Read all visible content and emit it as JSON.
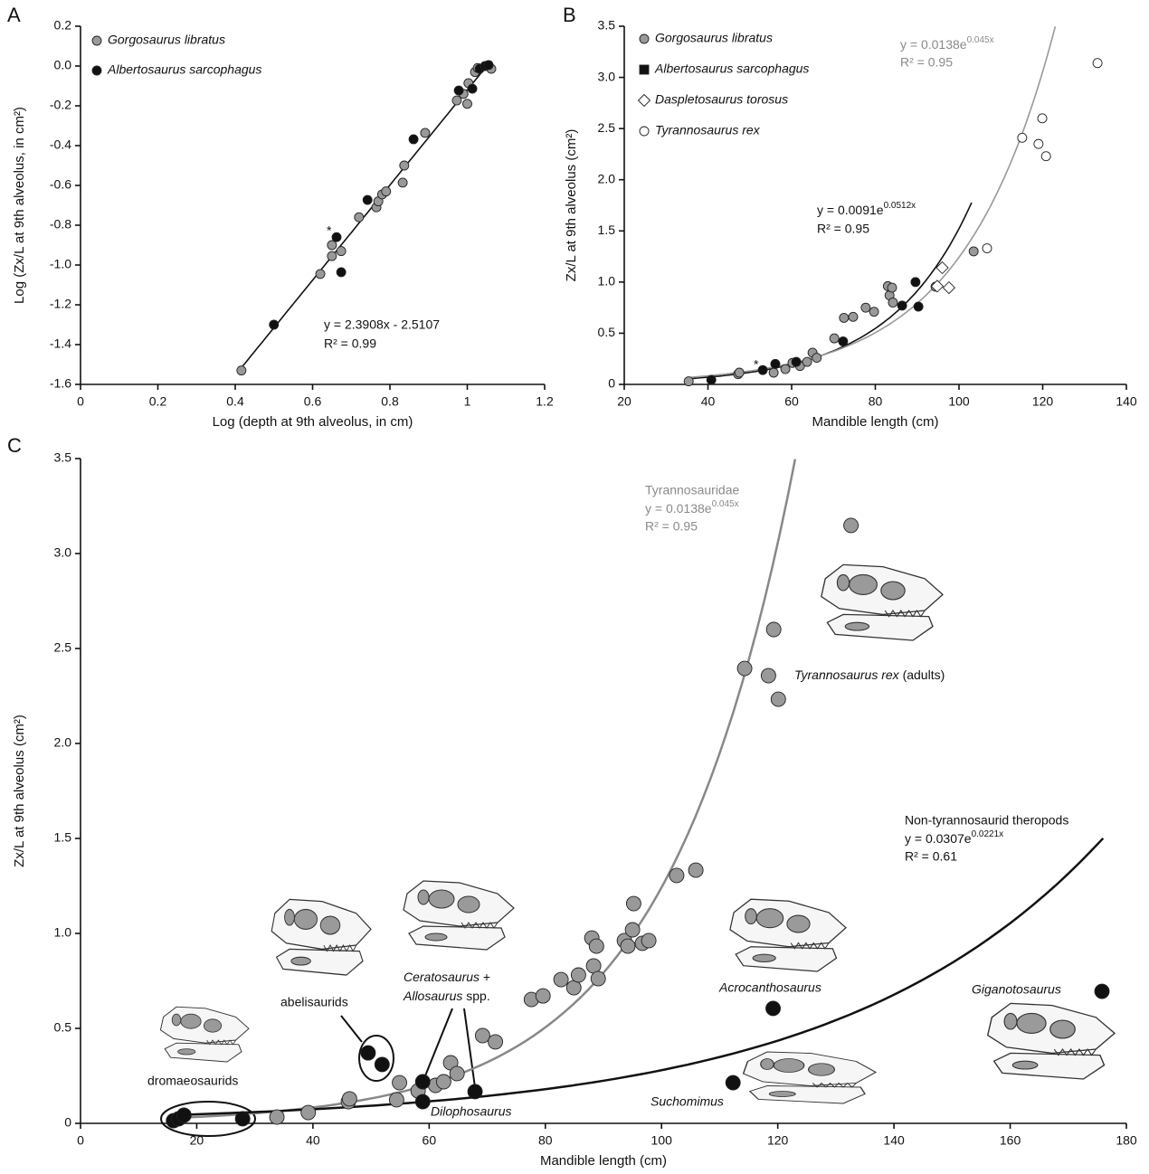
{
  "chart_data": [
    {
      "type": "scatter",
      "panel": "A",
      "xlabel": "Log (depth at 9th alveolus, in cm)",
      "ylabel": "Log (Zx/L at 9th alveolus, in cm²)",
      "xlim": [
        0,
        1.2
      ],
      "xticks": [
        0,
        0.2,
        0.4,
        0.6,
        0.8,
        1,
        1.2
      ],
      "ylim": [
        -1.6,
        0.2
      ],
      "yticks": [
        0.2,
        {
          "value": 0,
          "label": "0.0"
        },
        -0.2,
        -0.4,
        -0.6,
        -0.8,
        {
          "value": -1,
          "label": "-1.0"
        },
        -1.2,
        -1.4,
        -1.6
      ],
      "series": [
        {
          "name": "Gorgosaurus libratus",
          "color": "#999999",
          "marker": "circle",
          "x": [
            0.416,
            0.62,
            0.65,
            0.65,
            0.674,
            0.72,
            0.765,
            0.77,
            0.78,
            0.79,
            0.833,
            0.837,
            0.891,
            0.973,
            0.99,
            1.0,
            1.003,
            1.02,
            1.027,
            1.062
          ],
          "values": [
            -1.53,
            -1.045,
            -0.955,
            -0.9,
            -0.93,
            -0.76,
            -0.71,
            -0.68,
            -0.645,
            -0.63,
            -0.586,
            -0.5,
            -0.336,
            -0.173,
            -0.14,
            -0.19,
            -0.086,
            -0.03,
            -0.01,
            -0.014
          ]
        },
        {
          "name": "Albertosaurus sarcophagus",
          "color": "#111111",
          "marker": "circle",
          "x": [
            0.5,
            0.662,
            0.674,
            0.742,
            0.861,
            0.978,
            1.013,
            1.032,
            1.046,
            1.055
          ],
          "values": [
            -1.3,
            -0.86,
            -1.036,
            -0.673,
            -0.368,
            -0.123,
            -0.114,
            -0.014,
            0,
            0.005
          ]
        }
      ],
      "fits": [
        {
          "kind": "linear",
          "slope": 2.3908,
          "intercept": -2.5107,
          "x": [
            0.42,
            1.06
          ],
          "color": "#111111"
        }
      ],
      "equation": "y = 2.3908x - 2.5107",
      "r2": "R² = 0.99",
      "asterisk": "*"
    },
    {
      "type": "scatter",
      "panel": "B",
      "xlabel": "Mandible length (cm)",
      "ylabel": "Zx/L at 9th alveolus (cm²)",
      "xlim": [
        20,
        140
      ],
      "xticks": [
        20,
        40,
        60,
        80,
        100,
        120,
        140
      ],
      "ylim": [
        0,
        3.5
      ],
      "yticks": [
        0,
        0.5,
        {
          "value": 1,
          "label": "1.0"
        },
        1.5,
        {
          "value": 2,
          "label": "2.0"
        },
        2.5,
        {
          "value": 3,
          "label": "3.0"
        },
        3.5
      ],
      "series": [
        {
          "name": "Gorgosaurus libratus",
          "color": "#999999",
          "marker": "circle",
          "x": [
            35.4,
            47.2,
            47.5,
            55.7,
            58.5,
            60.2,
            62,
            63.7,
            65,
            66,
            70.2,
            72.5,
            74.7,
            77.7,
            79.7,
            83,
            83.4,
            84,
            84.2,
            94.4,
            103.5
          ],
          "values": [
            0.03,
            0.1,
            0.115,
            0.115,
            0.15,
            0.21,
            0.18,
            0.22,
            0.31,
            0.26,
            0.45,
            0.65,
            0.66,
            0.75,
            0.71,
            0.96,
            0.87,
            0.945,
            0.8,
            0.955,
            1.3
          ]
        },
        {
          "name": "Albertosaurus sarcophagus",
          "color": "#111111",
          "marker": "square",
          "x": [
            40.8,
            53.1,
            56.1,
            61.1,
            72.3,
            86.4,
            89.6,
            90.3
          ],
          "values": [
            0.044,
            0.14,
            0.2,
            0.22,
            0.42,
            0.77,
            1.0,
            0.76
          ]
        },
        {
          "name": "Daspletosaurus torosus",
          "color": "#ffffff",
          "marker": "diamond",
          "x": [
            96,
            94.8,
            97.6
          ],
          "values": [
            1.14,
            0.96,
            0.945
          ]
        },
        {
          "name": "Tyrannosaurus rex",
          "color": "#ffffff",
          "marker": "circle",
          "x": [
            106.7,
            115.1,
            119,
            119.9,
            120.8,
            133.1
          ],
          "values": [
            1.33,
            2.41,
            2.35,
            2.6,
            2.23,
            3.14
          ]
        }
      ],
      "fits": [
        {
          "kind": "exp",
          "a": 0.0091,
          "b": 0.0512,
          "x": [
            35,
            103
          ],
          "color": "#111111"
        },
        {
          "kind": "exp",
          "a": 0.0138,
          "b": 0.045,
          "x": [
            35,
            123
          ],
          "color": "#999999"
        }
      ],
      "equations": [
        {
          "base": "y = 0.0091e",
          "exp": "0.0512x",
          "r2": "R² = 0.95"
        },
        {
          "base": "y = 0.0138e",
          "exp": "0.045x",
          "r2": "R² = 0.95"
        }
      ],
      "asterisk": "*"
    },
    {
      "type": "scatter",
      "panel": "C",
      "xlabel": "Mandible length (cm)",
      "ylabel": "Zx/L at 9th alveolus (cm²)",
      "xlim": [
        0,
        180
      ],
      "xticks": [
        0,
        20,
        40,
        60,
        80,
        100,
        120,
        140,
        160,
        180
      ],
      "ylim": [
        0,
        3.5
      ],
      "yticks": [
        0,
        0.5,
        {
          "value": 1,
          "label": "1.0"
        },
        1.5,
        {
          "value": 2,
          "label": "2.0"
        },
        2.5,
        {
          "value": 3,
          "label": "3.0"
        },
        3.5
      ],
      "series": [
        {
          "color": "#999999",
          "marker": "circle",
          "x": [
            33.8,
            39.2,
            46.1,
            46.3,
            54.4,
            54.9,
            58.1,
            61.1,
            62.5,
            63.7,
            64.8,
            69.2,
            71.4,
            77.6,
            79.6,
            82.7,
            84.9,
            85.7,
            88,
            88.3,
            88.8,
            89.1,
            93.6,
            94.2,
            95,
            95.2,
            96.7,
            97.8,
            102.6,
            105.9,
            114.3,
            118.4,
            119.3,
            120.1,
            132.6
          ],
          "values": [
            0.033,
            0.057,
            0.114,
            0.129,
            0.124,
            0.214,
            0.171,
            0.2,
            0.219,
            0.319,
            0.262,
            0.462,
            0.429,
            0.652,
            0.671,
            0.757,
            0.714,
            0.781,
            0.976,
            0.829,
            0.933,
            0.762,
            0.962,
            0.933,
            1.019,
            1.157,
            0.948,
            0.962,
            1.305,
            1.333,
            2.395,
            2.357,
            2.6,
            2.233,
            3.148
          ]
        },
        {
          "color": "#111111",
          "marker": "circle",
          "x": [
            16,
            16.9,
            17.8,
            27.9,
            49.5,
            51.9,
            58.9,
            58.9,
            67.9,
            112.3,
            119.2,
            175.8
          ],
          "values": [
            0.014,
            0.024,
            0.043,
            0.024,
            0.371,
            0.31,
            0.219,
            0.114,
            0.167,
            0.214,
            0.605,
            0.695
          ]
        }
      ],
      "fits": [
        {
          "kind": "exp",
          "a": 0.0138,
          "b": 0.045,
          "x": [
            17,
            123
          ],
          "color": "#888888"
        },
        {
          "kind": "exp",
          "a": 0.0307,
          "b": 0.0221,
          "x": [
            17,
            176
          ],
          "color": "#111111"
        }
      ],
      "groups": [
        {
          "title": "Tyrannosauridae",
          "base": "y = 0.0138e",
          "exp": "0.045x",
          "r2": "R² = 0.95"
        },
        {
          "title": "Non-tyrannosaurid theropods",
          "base": "y = 0.0307e",
          "exp": "0.0221x",
          "r2": "R² = 0.61"
        }
      ],
      "labels": {
        "trex": {
          "italic": "Tyrannosaurus rex",
          "rest": " (adults)"
        },
        "dromaeosaurids": "dromaeosaurids",
        "abelisaurids": "abelisaurids",
        "cerato": {
          "italic": "Ceratosaurus",
          "rest": " +"
        },
        "allo": {
          "italic": "Allosaurus",
          "rest": " spp."
        },
        "dilophosaurus": "Dilophosaurus",
        "acrocanthosaurus": "Acrocanthosaurus",
        "suchomimus": "Suchomimus",
        "giganotosaurus": "Giganotosaurus"
      }
    }
  ]
}
